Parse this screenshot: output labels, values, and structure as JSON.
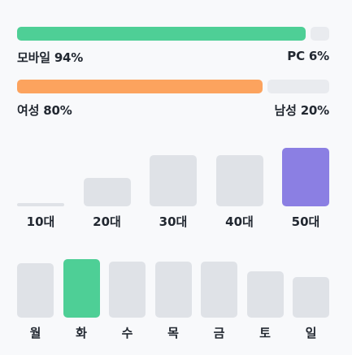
{
  "device": {
    "left_label": "모바일 94%",
    "right_label": "PC 6%",
    "left_value": 94,
    "right_value": 6,
    "left_color": "#4ecf96",
    "right_color": "#e9ebef"
  },
  "gender": {
    "left_label": "여성 80%",
    "right_label": "남성 20%",
    "left_value": 80,
    "right_value": 20,
    "left_color": "#fca35e",
    "right_color": "#e9ebef"
  },
  "age": {
    "highlight_color": "#8b7fe3",
    "base_color": "#dfe2e7",
    "items": [
      {
        "label": "10대",
        "value": 0.05,
        "highlight": false
      },
      {
        "label": "20대",
        "value": 0.49,
        "highlight": false
      },
      {
        "label": "30대",
        "value": 0.88,
        "highlight": false
      },
      {
        "label": "40대",
        "value": 0.88,
        "highlight": false
      },
      {
        "label": "50대",
        "value": 1.0,
        "highlight": true
      }
    ]
  },
  "weekday": {
    "highlight_color": "#4ecf96",
    "base_color": "#dfe2e7",
    "items": [
      {
        "label": "월",
        "value": 0.93,
        "highlight": false
      },
      {
        "label": "화",
        "value": 1.0,
        "highlight": true
      },
      {
        "label": "수",
        "value": 0.96,
        "highlight": false
      },
      {
        "label": "목",
        "value": 0.96,
        "highlight": false
      },
      {
        "label": "금",
        "value": 0.96,
        "highlight": false
      },
      {
        "label": "토",
        "value": 0.79,
        "highlight": false
      },
      {
        "label": "일",
        "value": 0.69,
        "highlight": false
      }
    ]
  }
}
